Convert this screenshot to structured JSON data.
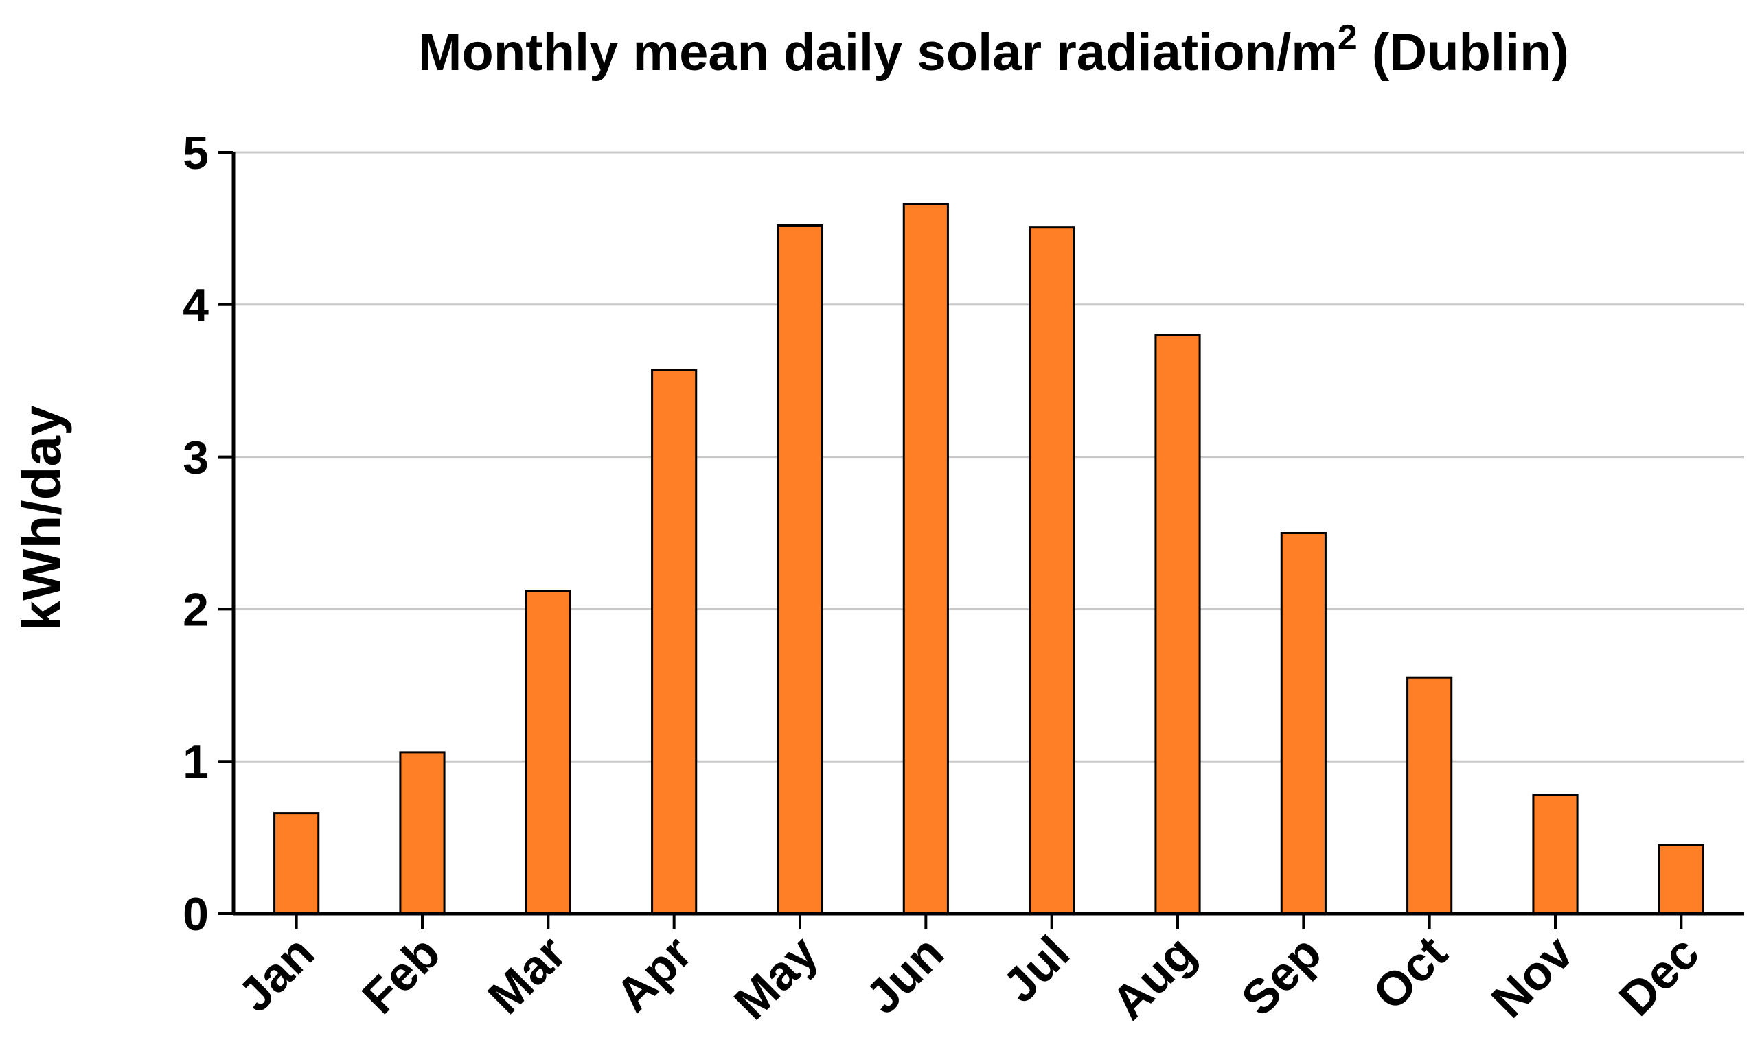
{
  "chart_data": {
    "type": "bar",
    "title": {
      "main": "Monthly mean daily solar radiation/m",
      "superscript": "2",
      "suffix": " (Dublin)"
    },
    "xlabel": "",
    "ylabel": "kWh/day",
    "ylim": [
      0,
      5
    ],
    "yticks": [
      "0",
      "1",
      "2",
      "3",
      "4",
      "5"
    ],
    "grid": true,
    "categories": [
      "Jan",
      "Feb",
      "Mar",
      "Apr",
      "May",
      "Jun",
      "Jul",
      "Aug",
      "Sep",
      "Oct",
      "Nov",
      "Dec"
    ],
    "values": [
      0.66,
      1.06,
      2.12,
      3.57,
      4.52,
      4.66,
      4.51,
      3.8,
      2.5,
      1.55,
      0.78,
      0.45
    ],
    "colors": {
      "bar_fill": "#FF7F27",
      "bar_stroke": "#000000",
      "grid": "#C8C8C8",
      "axis": "#000000"
    }
  }
}
